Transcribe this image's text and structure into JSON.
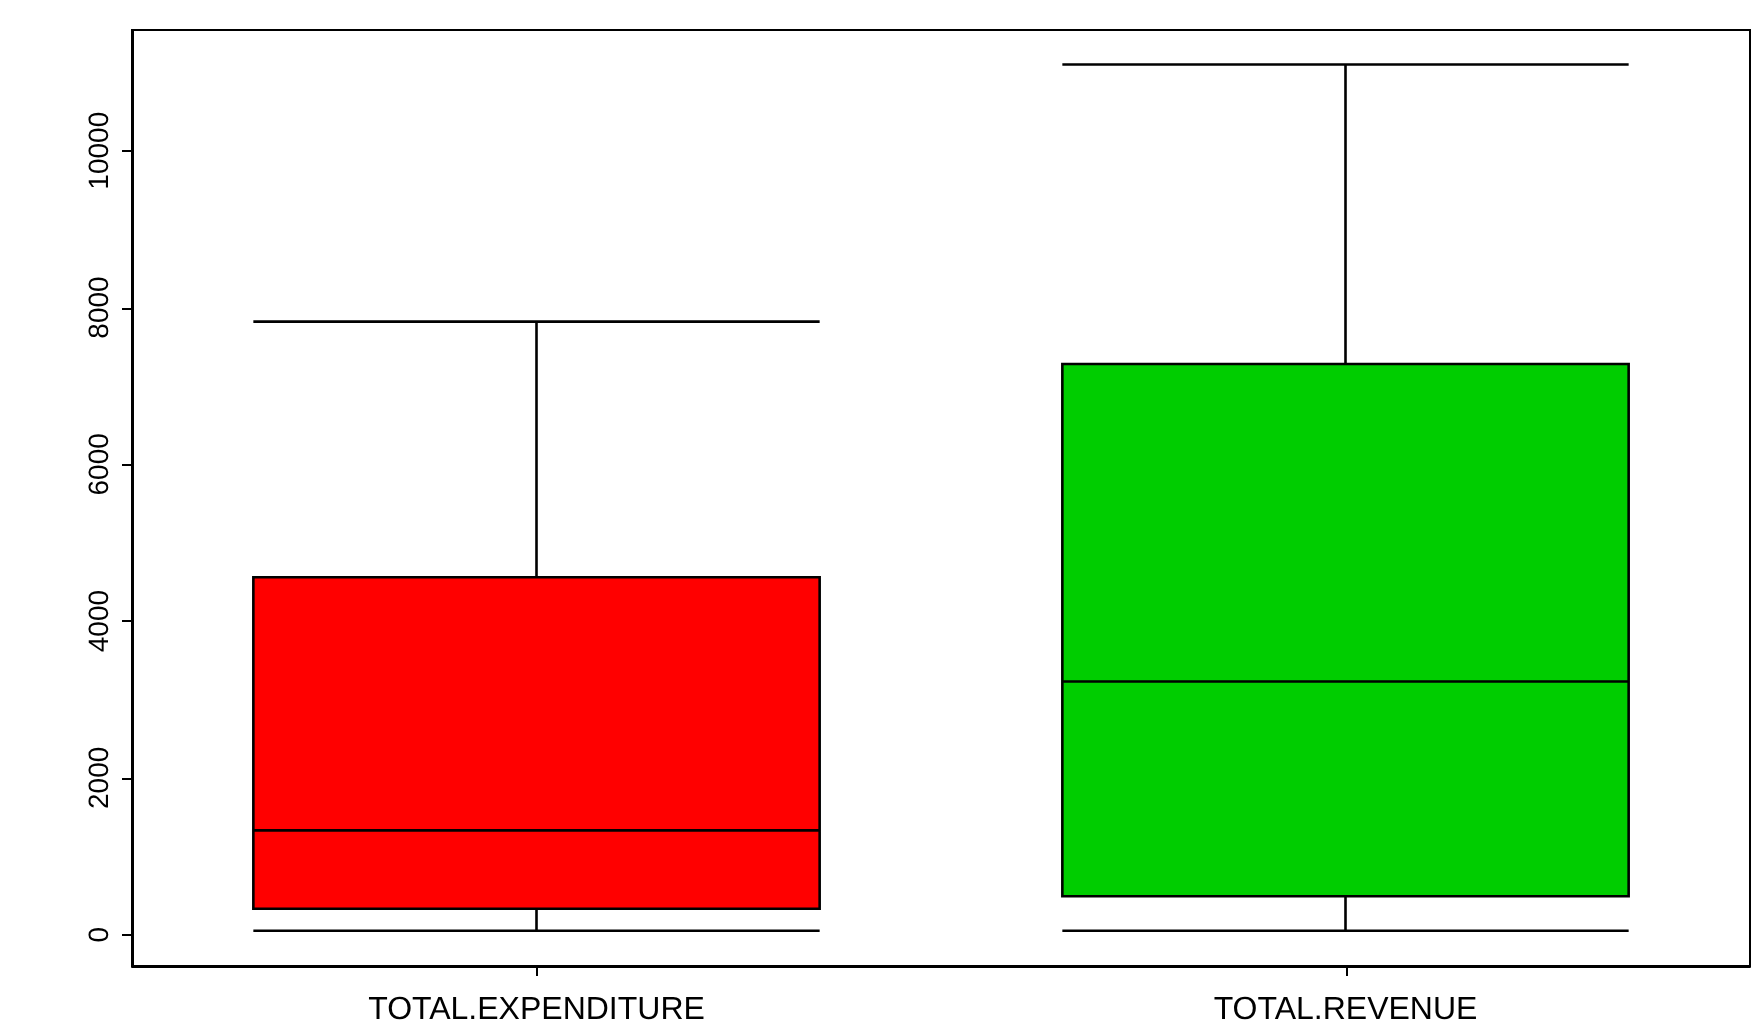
{
  "chart_data": {
    "type": "box",
    "categories": [
      "TOTAL.EXPENDITURE",
      "TOTAL.REVENUE"
    ],
    "boxes": [
      {
        "low": 50,
        "q1": 330,
        "median": 1330,
        "q3": 4560,
        "high": 7820
      },
      {
        "low": 50,
        "q1": 490,
        "median": 3230,
        "q3": 7280,
        "high": 11100
      }
    ],
    "colors": [
      "#ff0000",
      "#00cd00"
    ],
    "ylim": [
      -400,
      11540
    ],
    "yticks": [
      0,
      2000,
      4000,
      6000,
      8000,
      10000
    ],
    "grid": false
  }
}
